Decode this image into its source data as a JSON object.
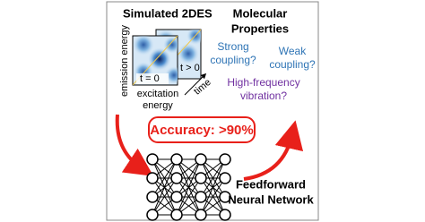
{
  "plot": {
    "title": "Simulated 2DES",
    "y_label": "emission energy",
    "x_label": [
      "excitation",
      "energy"
    ],
    "time_label": "time",
    "frames": [
      "t = 0",
      "t > 0"
    ]
  },
  "properties": {
    "title": [
      "Molecular",
      "Properties"
    ],
    "items": [
      {
        "lines": [
          "Strong",
          "coupling?"
        ]
      },
      {
        "lines": [
          "Weak",
          "coupling?"
        ]
      },
      {
        "lines": [
          "High-frequency",
          "vibration?"
        ]
      }
    ]
  },
  "accuracy": "Accuracy: >90%",
  "network": {
    "label": [
      "Feedforward",
      "Neural Network"
    ]
  }
}
